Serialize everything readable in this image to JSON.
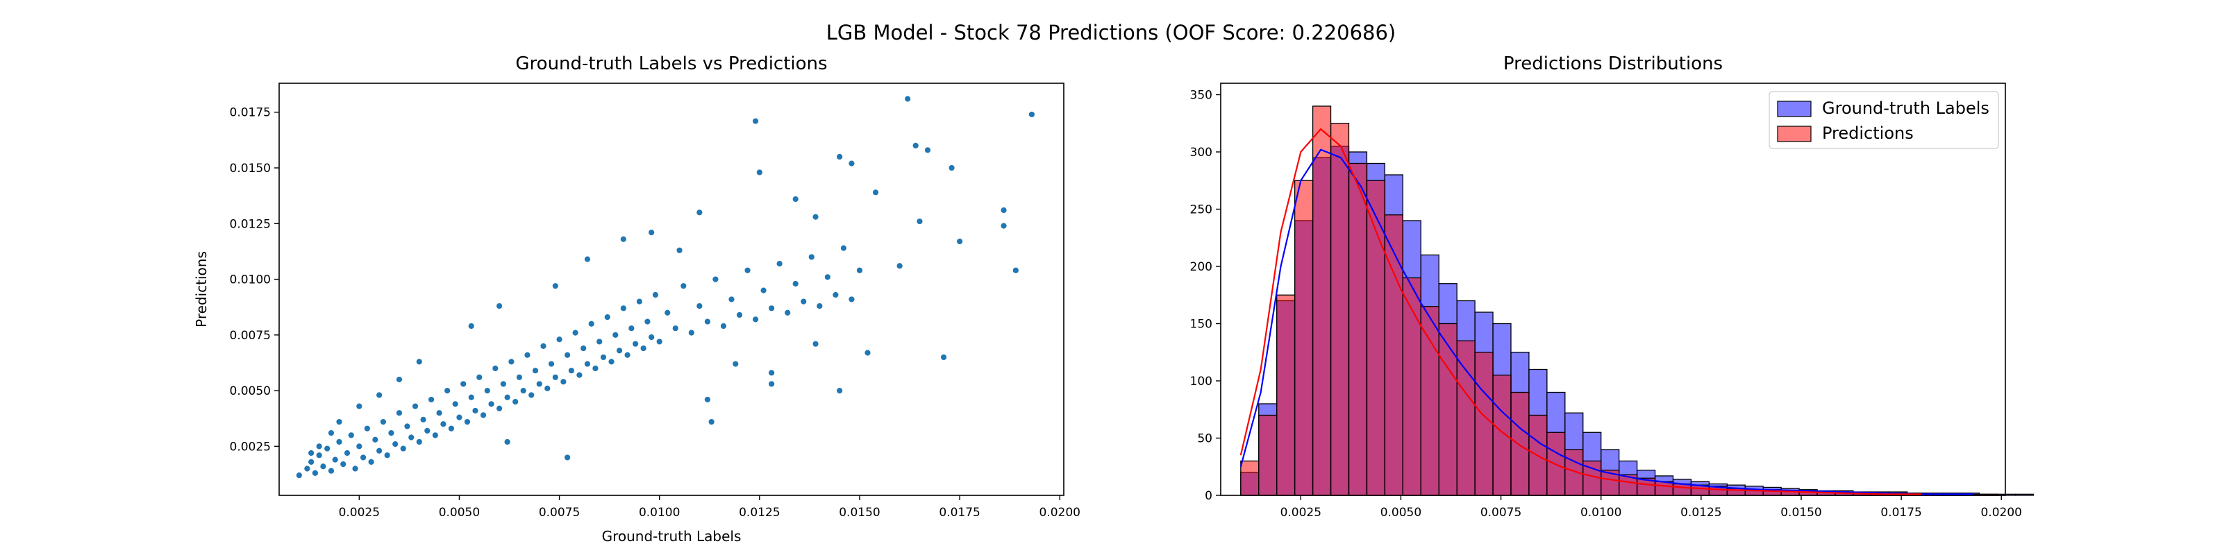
{
  "figure": {
    "title": "LGB Model - Stock 78 Predictions (OOF Score: 0.220686)"
  },
  "chart_data": [
    {
      "type": "scatter",
      "title": "Ground-truth Labels vs Predictions",
      "xlabel": "Ground-truth Labels",
      "ylabel": "Predictions",
      "xlim": [
        0.0005,
        0.0201
      ],
      "ylim": [
        0.0003,
        0.0188
      ],
      "xticks": [
        0.0025,
        0.005,
        0.0075,
        0.01,
        0.0125,
        0.015,
        0.0175,
        0.02
      ],
      "xtick_labels": [
        "0.0025",
        "0.0050",
        "0.0075",
        "0.0100",
        "0.0125",
        "0.0150",
        "0.0175",
        "0.0200"
      ],
      "yticks": [
        0.0025,
        0.005,
        0.0075,
        0.01,
        0.0125,
        0.015,
        0.0175
      ],
      "ytick_labels": [
        "0.0025",
        "0.0050",
        "0.0075",
        "0.0100",
        "0.0125",
        "0.0150",
        "0.0175"
      ],
      "grid": false,
      "color": "#1f77b4",
      "points": [
        [
          0.001,
          0.0012
        ],
        [
          0.0012,
          0.0015
        ],
        [
          0.0013,
          0.0018
        ],
        [
          0.0014,
          0.0013
        ],
        [
          0.0015,
          0.0021
        ],
        [
          0.0016,
          0.0016
        ],
        [
          0.0017,
          0.0024
        ],
        [
          0.0018,
          0.0014
        ],
        [
          0.0019,
          0.0019
        ],
        [
          0.002,
          0.0027
        ],
        [
          0.0021,
          0.0017
        ],
        [
          0.0022,
          0.0022
        ],
        [
          0.0023,
          0.003
        ],
        [
          0.0024,
          0.0015
        ],
        [
          0.0025,
          0.0025
        ],
        [
          0.0026,
          0.002
        ],
        [
          0.0027,
          0.0033
        ],
        [
          0.0028,
          0.0018
        ],
        [
          0.0029,
          0.0028
        ],
        [
          0.003,
          0.0023
        ],
        [
          0.0031,
          0.0036
        ],
        [
          0.0032,
          0.0021
        ],
        [
          0.0033,
          0.0031
        ],
        [
          0.0034,
          0.0026
        ],
        [
          0.0035,
          0.004
        ],
        [
          0.0036,
          0.0024
        ],
        [
          0.0037,
          0.0034
        ],
        [
          0.0038,
          0.0029
        ],
        [
          0.0039,
          0.0043
        ],
        [
          0.004,
          0.0027
        ],
        [
          0.0041,
          0.0037
        ],
        [
          0.0042,
          0.0032
        ],
        [
          0.0043,
          0.0046
        ],
        [
          0.0044,
          0.003
        ],
        [
          0.0045,
          0.004
        ],
        [
          0.0046,
          0.0035
        ],
        [
          0.0047,
          0.005
        ],
        [
          0.0048,
          0.0033
        ],
        [
          0.0049,
          0.0044
        ],
        [
          0.005,
          0.0038
        ],
        [
          0.0051,
          0.0053
        ],
        [
          0.0052,
          0.0036
        ],
        [
          0.0053,
          0.0047
        ],
        [
          0.0054,
          0.0041
        ],
        [
          0.0055,
          0.0056
        ],
        [
          0.0056,
          0.0039
        ],
        [
          0.0057,
          0.005
        ],
        [
          0.0058,
          0.0044
        ],
        [
          0.0059,
          0.006
        ],
        [
          0.006,
          0.0042
        ],
        [
          0.0061,
          0.0053
        ],
        [
          0.0062,
          0.0047
        ],
        [
          0.0063,
          0.0063
        ],
        [
          0.0064,
          0.0045
        ],
        [
          0.0065,
          0.0056
        ],
        [
          0.0066,
          0.005
        ],
        [
          0.0067,
          0.0066
        ],
        [
          0.0068,
          0.0048
        ],
        [
          0.0069,
          0.0059
        ],
        [
          0.007,
          0.0053
        ],
        [
          0.0071,
          0.007
        ],
        [
          0.0072,
          0.0051
        ],
        [
          0.0073,
          0.0062
        ],
        [
          0.0074,
          0.0056
        ],
        [
          0.0075,
          0.0073
        ],
        [
          0.0076,
          0.0054
        ],
        [
          0.0077,
          0.0066
        ],
        [
          0.0078,
          0.0059
        ],
        [
          0.0079,
          0.0076
        ],
        [
          0.008,
          0.0057
        ],
        [
          0.0081,
          0.0069
        ],
        [
          0.0082,
          0.0062
        ],
        [
          0.0083,
          0.008
        ],
        [
          0.0084,
          0.006
        ],
        [
          0.0085,
          0.0072
        ],
        [
          0.0086,
          0.0065
        ],
        [
          0.0087,
          0.0083
        ],
        [
          0.0088,
          0.0063
        ],
        [
          0.0089,
          0.0075
        ],
        [
          0.009,
          0.0068
        ],
        [
          0.0091,
          0.0087
        ],
        [
          0.0092,
          0.0066
        ],
        [
          0.0093,
          0.0078
        ],
        [
          0.0094,
          0.0071
        ],
        [
          0.0095,
          0.009
        ],
        [
          0.0096,
          0.0069
        ],
        [
          0.0097,
          0.0081
        ],
        [
          0.0098,
          0.0074
        ],
        [
          0.0099,
          0.0093
        ],
        [
          0.01,
          0.0072
        ],
        [
          0.0102,
          0.0085
        ],
        [
          0.0104,
          0.0078
        ],
        [
          0.0106,
          0.0097
        ],
        [
          0.0108,
          0.0076
        ],
        [
          0.011,
          0.0088
        ],
        [
          0.0112,
          0.0081
        ],
        [
          0.0114,
          0.01
        ],
        [
          0.0116,
          0.0079
        ],
        [
          0.0118,
          0.0091
        ],
        [
          0.012,
          0.0084
        ],
        [
          0.0122,
          0.0104
        ],
        [
          0.0124,
          0.0082
        ],
        [
          0.0126,
          0.0095
        ],
        [
          0.0128,
          0.0087
        ],
        [
          0.013,
          0.0107
        ],
        [
          0.0132,
          0.0085
        ],
        [
          0.0134,
          0.0098
        ],
        [
          0.0136,
          0.009
        ],
        [
          0.0138,
          0.011
        ],
        [
          0.014,
          0.0088
        ],
        [
          0.0142,
          0.0101
        ],
        [
          0.0144,
          0.0093
        ],
        [
          0.0146,
          0.0114
        ],
        [
          0.0148,
          0.0091
        ],
        [
          0.015,
          0.0104
        ],
        [
          0.0124,
          0.0171
        ],
        [
          0.0125,
          0.0148
        ],
        [
          0.0134,
          0.0136
        ],
        [
          0.0145,
          0.0155
        ],
        [
          0.0148,
          0.0152
        ],
        [
          0.0162,
          0.0181
        ],
        [
          0.0164,
          0.016
        ],
        [
          0.0167,
          0.0158
        ],
        [
          0.0173,
          0.015
        ],
        [
          0.0186,
          0.0131
        ],
        [
          0.0186,
          0.0124
        ],
        [
          0.0193,
          0.0174
        ],
        [
          0.0189,
          0.0104
        ],
        [
          0.0175,
          0.0117
        ],
        [
          0.0171,
          0.0065
        ],
        [
          0.0145,
          0.005
        ],
        [
          0.0128,
          0.0053
        ],
        [
          0.0113,
          0.0036
        ],
        [
          0.0112,
          0.0046
        ],
        [
          0.0077,
          0.002
        ],
        [
          0.0062,
          0.0027
        ],
        [
          0.0154,
          0.0139
        ],
        [
          0.0139,
          0.0128
        ],
        [
          0.016,
          0.0106
        ],
        [
          0.0165,
          0.0126
        ],
        [
          0.0128,
          0.0058
        ],
        [
          0.0119,
          0.0062
        ],
        [
          0.0139,
          0.0071
        ],
        [
          0.0152,
          0.0067
        ],
        [
          0.0105,
          0.0113
        ],
        [
          0.0098,
          0.0121
        ],
        [
          0.011,
          0.013
        ],
        [
          0.0091,
          0.0118
        ],
        [
          0.0082,
          0.0109
        ],
        [
          0.0074,
          0.0097
        ],
        [
          0.006,
          0.0088
        ],
        [
          0.0053,
          0.0079
        ],
        [
          0.004,
          0.0063
        ],
        [
          0.0035,
          0.0055
        ],
        [
          0.003,
          0.0048
        ],
        [
          0.0025,
          0.0043
        ],
        [
          0.002,
          0.0036
        ],
        [
          0.0018,
          0.0031
        ],
        [
          0.0015,
          0.0025
        ],
        [
          0.0013,
          0.0022
        ]
      ]
    },
    {
      "type": "histogram",
      "title": "Predictions Distributions",
      "xlabel": "",
      "ylabel": "",
      "xlim": [
        0.0005,
        0.0201
      ],
      "ylim": [
        0,
        360
      ],
      "xticks": [
        0.0025,
        0.005,
        0.0075,
        0.01,
        0.0125,
        0.015,
        0.0175,
        0.02
      ],
      "xtick_labels": [
        "0.0025",
        "0.0050",
        "0.0075",
        "0.0100",
        "0.0125",
        "0.0150",
        "0.0175",
        "0.0200"
      ],
      "yticks": [
        0,
        50,
        100,
        150,
        200,
        250,
        300,
        350
      ],
      "ytick_labels": [
        "0",
        "50",
        "100",
        "150",
        "200",
        "250",
        "300",
        "350"
      ],
      "grid": false,
      "legend_position": "top-right",
      "series": [
        {
          "name": "Ground-truth Labels",
          "color": "#0000ff",
          "bin_start": 0.001,
          "bin_width": 0.00045,
          "counts": [
            20,
            80,
            170,
            240,
            295,
            305,
            300,
            290,
            280,
            240,
            210,
            185,
            170,
            160,
            150,
            125,
            110,
            90,
            72,
            55,
            40,
            30,
            22,
            17,
            14,
            12,
            10,
            9,
            8,
            7,
            6,
            5,
            4,
            4,
            3,
            3,
            3,
            2,
            2,
            2,
            2,
            1,
            1,
            1
          ],
          "kde": [
            [
              0.001,
              25
            ],
            [
              0.0015,
              90
            ],
            [
              0.002,
              200
            ],
            [
              0.0025,
              275
            ],
            [
              0.003,
              302
            ],
            [
              0.0035,
              295
            ],
            [
              0.004,
              270
            ],
            [
              0.0045,
              235
            ],
            [
              0.005,
              200
            ],
            [
              0.0055,
              168
            ],
            [
              0.006,
              140
            ],
            [
              0.0065,
              115
            ],
            [
              0.007,
              93
            ],
            [
              0.0075,
              74
            ],
            [
              0.008,
              58
            ],
            [
              0.0085,
              45
            ],
            [
              0.009,
              35
            ],
            [
              0.0095,
              27
            ],
            [
              0.01,
              21
            ],
            [
              0.011,
              14
            ],
            [
              0.012,
              10
            ],
            [
              0.013,
              7
            ],
            [
              0.014,
              5
            ],
            [
              0.015,
              4
            ],
            [
              0.016,
              3
            ],
            [
              0.017,
              2
            ],
            [
              0.018,
              1
            ],
            [
              0.0193,
              1
            ]
          ]
        },
        {
          "name": "Predictions",
          "color": "#ff0000",
          "bin_start": 0.001,
          "bin_width": 0.00045,
          "counts": [
            30,
            70,
            175,
            275,
            340,
            325,
            290,
            275,
            245,
            190,
            165,
            150,
            135,
            125,
            105,
            90,
            70,
            55,
            40,
            30,
            22,
            18,
            15,
            12,
            10,
            9,
            8,
            6,
            5,
            5,
            4,
            4,
            3,
            3,
            2,
            2,
            2,
            2,
            1,
            1,
            1,
            1,
            0,
            0
          ],
          "kde": [
            [
              0.001,
              35
            ],
            [
              0.0015,
              110
            ],
            [
              0.002,
              230
            ],
            [
              0.0025,
              300
            ],
            [
              0.003,
              320
            ],
            [
              0.0035,
              305
            ],
            [
              0.004,
              265
            ],
            [
              0.0045,
              220
            ],
            [
              0.005,
              180
            ],
            [
              0.0055,
              148
            ],
            [
              0.006,
              120
            ],
            [
              0.0065,
              95
            ],
            [
              0.007,
              72
            ],
            [
              0.0075,
              56
            ],
            [
              0.008,
              43
            ],
            [
              0.0085,
              33
            ],
            [
              0.009,
              25
            ],
            [
              0.0095,
              19
            ],
            [
              0.01,
              15
            ],
            [
              0.011,
              10
            ],
            [
              0.012,
              7
            ],
            [
              0.013,
              5
            ],
            [
              0.014,
              4
            ],
            [
              0.015,
              3
            ],
            [
              0.016,
              2
            ],
            [
              0.017,
              1
            ],
            [
              0.018,
              1
            ]
          ]
        }
      ]
    }
  ]
}
